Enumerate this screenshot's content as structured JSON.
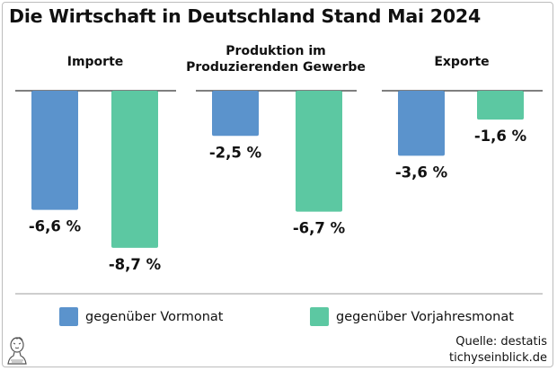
{
  "title": "Die Wirtschaft in Deutschland Stand Mai 2024",
  "colors": {
    "vormonat": "#5b93cc",
    "vorjahresmonat": "#5cc8a2",
    "baseline": "#333333",
    "separator": "#9e9e9e"
  },
  "chart_data": {
    "type": "bar",
    "categories": [
      [
        "Importe"
      ],
      [
        "Produktion im",
        "Produzierenden Gewerbe"
      ],
      [
        "Exporte"
      ]
    ],
    "series": [
      {
        "name": "gegenüber Vormonat",
        "values": [
          -6.6,
          -2.5,
          -3.6
        ],
        "labels": [
          "-6,6 %",
          "-2,5 %",
          "-3,6 %"
        ]
      },
      {
        "name": "gegenüber Vorjahresmonat",
        "values": [
          -8.7,
          -6.7,
          -1.6
        ],
        "labels": [
          "-8,7 %",
          "-6,7 %",
          "-1,6 %"
        ]
      }
    ],
    "ylim": [
      -9,
      0
    ]
  },
  "legend": [
    {
      "label": "gegenüber Vormonat",
      "color": "#5b93cc"
    },
    {
      "label": "gegenüber Vorjahresmonat",
      "color": "#5cc8a2"
    }
  ],
  "source": {
    "line1": "Quelle: destatis",
    "line2": "tichyseinblick.de"
  },
  "logo_icon": "bust-portrait-icon"
}
